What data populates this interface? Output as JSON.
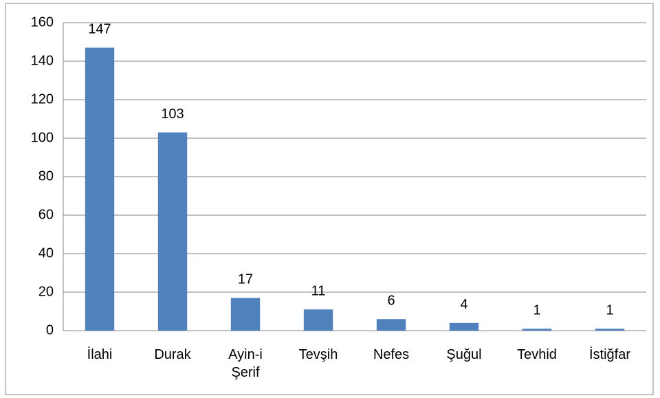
{
  "chart_data": {
    "type": "bar",
    "categories": [
      "İlahi",
      "Durak",
      "Ayin-i Şerif",
      "Tevşih",
      "Nefes",
      "Şuğul",
      "Tevhid",
      "İstiğfar"
    ],
    "values": [
      147,
      103,
      17,
      11,
      6,
      4,
      1,
      1
    ],
    "color": "#4f81bd",
    "ylim": [
      0,
      160
    ],
    "yticks": [
      0,
      20,
      40,
      60,
      80,
      100,
      120,
      140,
      160
    ],
    "grid": true
  }
}
